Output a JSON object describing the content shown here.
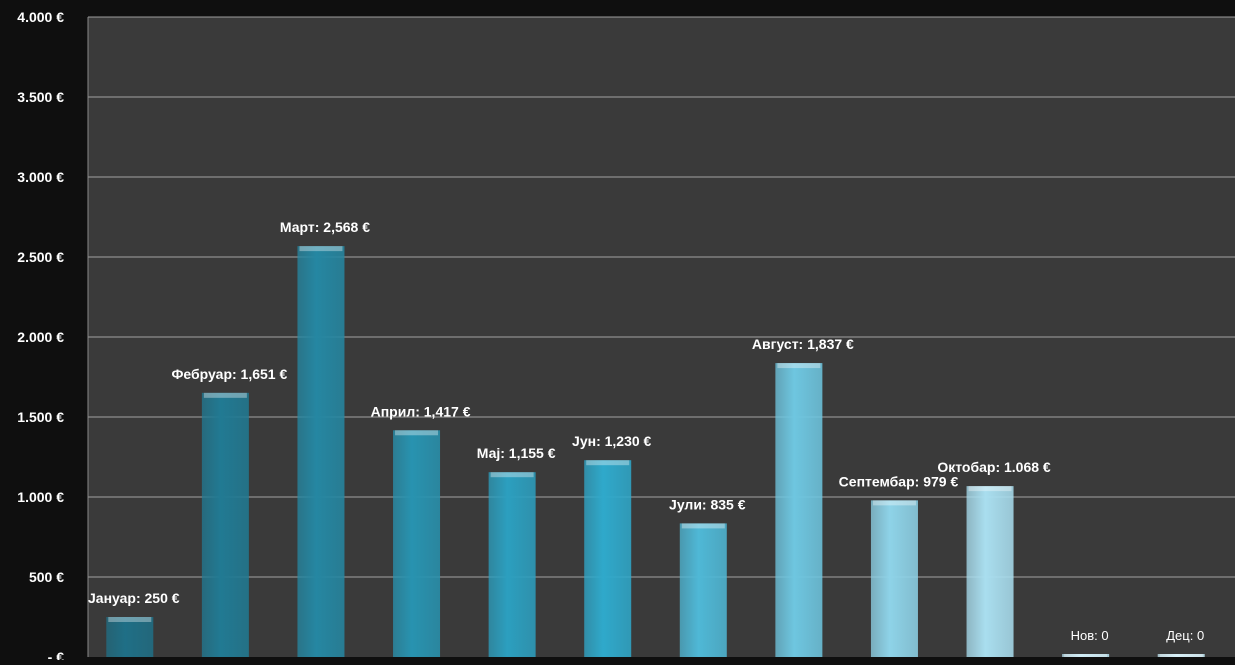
{
  "chart_data": {
    "type": "bar",
    "title": "",
    "xlabel": "",
    "ylabel": "",
    "ylim": [
      0,
      4000
    ],
    "yticks": [
      0,
      500,
      1000,
      1500,
      2000,
      2500,
      3000,
      3500,
      4000
    ],
    "ytick_labels": [
      "- €",
      "500 €",
      "1.000 €",
      "1.500 €",
      "2.000 €",
      "2.500 €",
      "3.000 €",
      "3.500 €",
      "4.000 €"
    ],
    "grid": true,
    "categories": [
      "Јануар",
      "Фебруар",
      "Март",
      "Април",
      "Мај",
      "Јун",
      "Јули",
      "Август",
      "Септембар",
      "Октобар",
      "Нов",
      "Дец"
    ],
    "values": [
      250,
      1651,
      2568,
      1417,
      1155,
      1230,
      835,
      1837,
      979,
      1068,
      0,
      0
    ],
    "data_labels": [
      "Јануар: 250 €",
      "Фебруар: 1,651 €",
      "Март: 2,568 €",
      "Април: 1,417 €",
      "Мај: 1,155 €",
      "Јун: 1,230 €",
      "Јули: 835 €",
      "Август: 1,837 €",
      "Септембар: 979 €",
      "Октобар: 1.068 €",
      "Нов: 0",
      "Дец: 0"
    ],
    "bar_colors": [
      "#1f6f86",
      "#217a93",
      "#2587a2",
      "#2893b0",
      "#2c9fbf",
      "#2fa9cb",
      "#4fb8d6",
      "#6ec6e0",
      "#8ed3e8",
      "#a9deef",
      "#b8e4f2",
      "#c4e9f5"
    ],
    "background_color": "#3a3a3a",
    "outer_background": "#0f0f0f",
    "gridline_color": "#bdbdbd",
    "label_color": "#ffffff"
  }
}
